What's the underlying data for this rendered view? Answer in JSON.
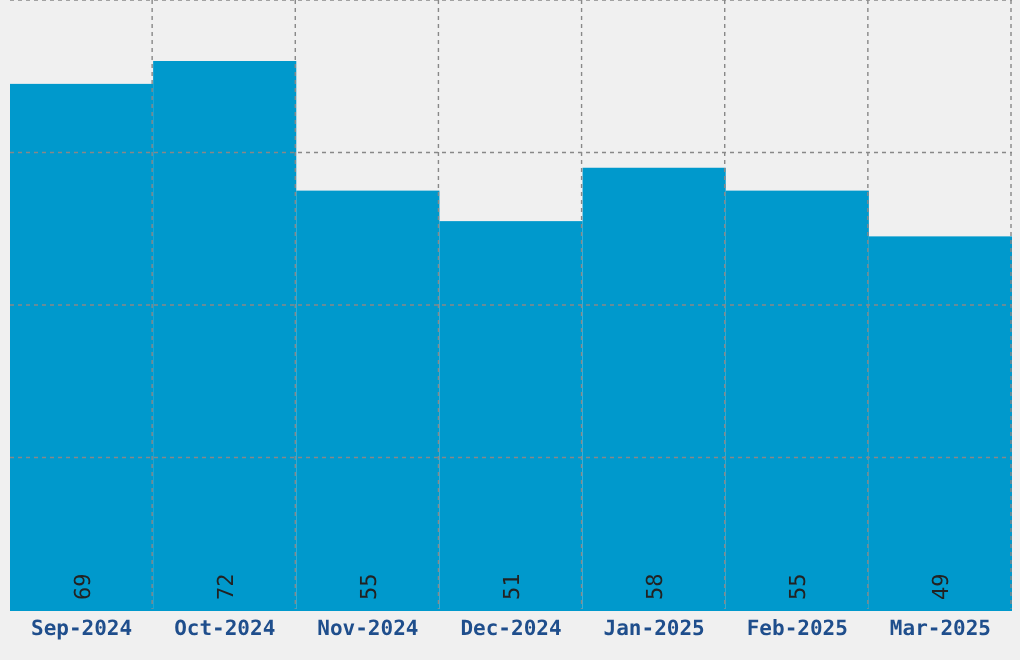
{
  "chart_data": {
    "type": "bar",
    "categories": [
      "Sep-2024",
      "Oct-2024",
      "Nov-2024",
      "Dec-2024",
      "Jan-2025",
      "Feb-2025",
      "Mar-2025"
    ],
    "values": [
      69,
      72,
      55,
      51,
      58,
      55,
      49
    ],
    "color": "#0099cc",
    "data_labels": true,
    "grid": true,
    "ylim": [
      0,
      80
    ],
    "yticks": [
      {
        "value": 0,
        "label": null
      },
      {
        "value": 20,
        "label": null
      },
      {
        "value": 40,
        "label": null
      },
      {
        "value": 60,
        "label": null
      },
      {
        "value": 80,
        "label": null
      }
    ],
    "tick_labels": "x"
  }
}
